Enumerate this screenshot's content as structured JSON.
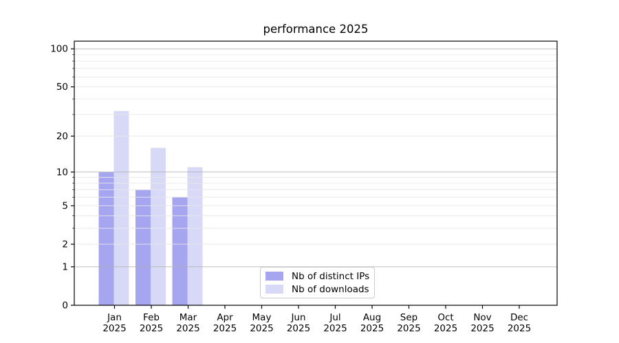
{
  "colors": {
    "background": "#ffffff",
    "bar_distinct_ips": "#a5a5f0",
    "bar_downloads": "#d8d8f7",
    "major_grid": "#b0b0b0",
    "minor_grid": "#e8e8e8",
    "spine": "#000000",
    "text": "#000000",
    "legend_border": "#c9c9c9"
  },
  "chart_data": {
    "type": "bar",
    "title": "performance 2025",
    "xlabel": "",
    "ylabel": "",
    "categories": [
      {
        "month": "Jan",
        "year": "2025"
      },
      {
        "month": "Feb",
        "year": "2025"
      },
      {
        "month": "Mar",
        "year": "2025"
      },
      {
        "month": "Apr",
        "year": "2025"
      },
      {
        "month": "May",
        "year": "2025"
      },
      {
        "month": "Jun",
        "year": "2025"
      },
      {
        "month": "Jul",
        "year": "2025"
      },
      {
        "month": "Aug",
        "year": "2025"
      },
      {
        "month": "Sep",
        "year": "2025"
      },
      {
        "month": "Oct",
        "year": "2025"
      },
      {
        "month": "Nov",
        "year": "2025"
      },
      {
        "month": "Dec",
        "year": "2025"
      }
    ],
    "series": [
      {
        "name": "Nb of distinct IPs",
        "color": "#a5a5f0",
        "values": [
          10,
          7,
          6,
          0,
          0,
          0,
          0,
          0,
          0,
          0,
          0,
          0
        ]
      },
      {
        "name": "Nb of downloads",
        "color": "#d8d8f7",
        "values": [
          32,
          16,
          11,
          0,
          0,
          0,
          0,
          0,
          0,
          0,
          0,
          0
        ]
      }
    ],
    "yscale": "log1p",
    "ylim": [
      0,
      115
    ],
    "y_ticks": [
      0,
      1,
      2,
      5,
      10,
      20,
      50,
      100
    ],
    "y_major_gridlines": [
      1,
      10,
      100
    ],
    "y_minor_gridlines": [
      2,
      3,
      4,
      5,
      6,
      7,
      8,
      9,
      20,
      30,
      40,
      50,
      60,
      70,
      80,
      90
    ],
    "grid": true,
    "legend_position": "lower center"
  }
}
